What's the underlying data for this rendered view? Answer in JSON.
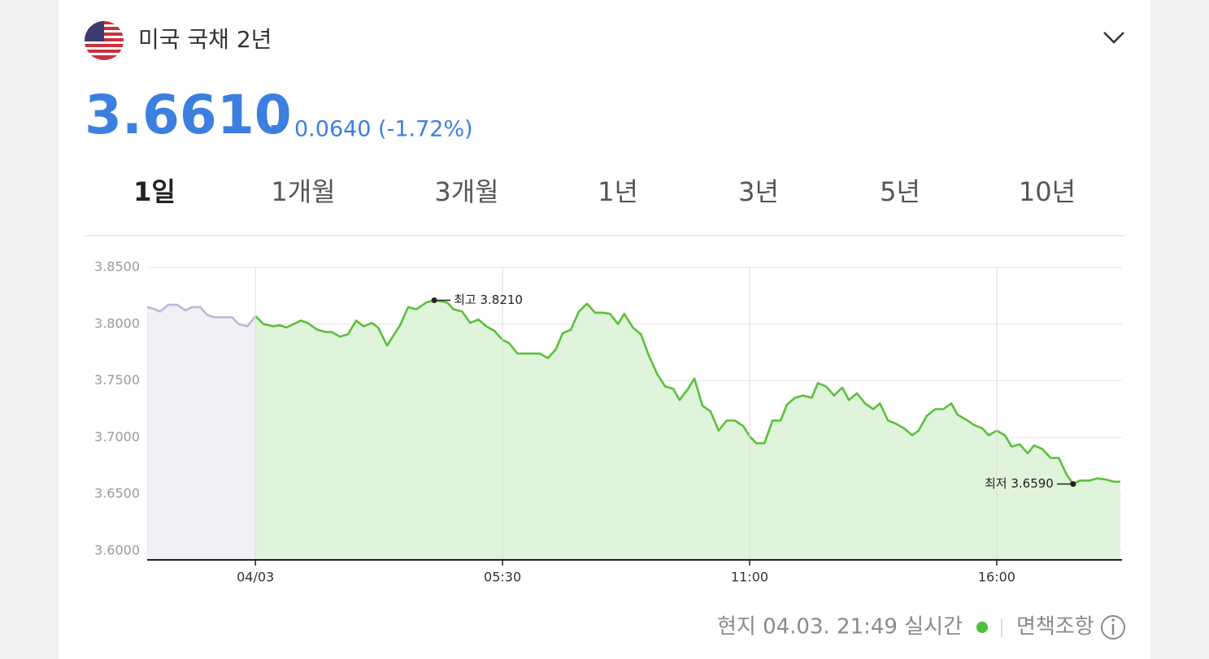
{
  "header": {
    "title": "미국 국채 2년",
    "price": "3.6610",
    "change": "0.0640 (-1.72%)"
  },
  "tabs": [
    "1일",
    "1개월",
    "3개월",
    "1년",
    "3년",
    "5년",
    "10년"
  ],
  "active_tab": 0,
  "chart_data": {
    "type": "area",
    "xlim": [
      -2.41,
      19.27
    ],
    "ylim": [
      3.6,
      3.85
    ],
    "xticks": [
      {
        "value": 0,
        "label": "04/03"
      },
      {
        "value": 5.5,
        "label": "05:30"
      },
      {
        "value": 11,
        "label": "11:00"
      },
      {
        "value": 16.5,
        "label": "16:00"
      }
    ],
    "yticks": [
      {
        "value": 3.6,
        "label": "3.6000"
      },
      {
        "value": 3.65,
        "label": "3.6500"
      },
      {
        "value": 3.7,
        "label": "3.7000"
      },
      {
        "value": 3.75,
        "label": "3.7500"
      },
      {
        "value": 3.8,
        "label": "3.8000"
      },
      {
        "value": 3.85,
        "label": "3.8500"
      }
    ],
    "grid": true,
    "series": [
      {
        "color": "#b7bcd9",
        "fill": "#f0f0f5",
        "x": [
          -2.41,
          -2.23,
          -2.12,
          -1.94,
          -1.74,
          -1.56,
          -1.41,
          -1.23,
          -1.07,
          -0.92,
          -0.52,
          -0.38,
          -0.18,
          0
        ],
        "values": [
          3.815,
          3.813,
          3.811,
          3.817,
          3.817,
          3.812,
          3.815,
          3.815,
          3.808,
          3.806,
          3.806,
          3.8,
          3.798,
          3.807
        ]
      },
      {
        "color": "#5cbf3d",
        "fill": "#dff4da",
        "x": [
          0,
          0.18,
          0.4,
          0.54,
          0.69,
          1.01,
          1.16,
          1.38,
          1.56,
          1.7,
          1.88,
          2.06,
          2.24,
          2.41,
          2.59,
          2.73,
          2.93,
          3.22,
          3.4,
          3.58,
          3.8,
          3.98,
          4.27,
          4.41,
          4.6,
          4.78,
          4.96,
          5.14,
          5.32,
          5.5,
          5.65,
          5.83,
          6.33,
          6.51,
          6.69,
          6.84,
          7.02,
          7.2,
          7.38,
          7.56,
          7.74,
          7.89,
          8.07,
          8.21,
          8.4,
          8.58,
          8.76,
          8.94,
          9.12,
          9.3,
          9.44,
          9.63,
          9.77,
          9.95,
          10.13,
          10.31,
          10.49,
          10.67,
          10.86,
          11,
          11.15,
          11.33,
          11.51,
          11.69,
          11.83,
          12.01,
          12.19,
          12.38,
          12.52,
          12.7,
          12.88,
          13.06,
          13.21,
          13.39,
          13.57,
          13.75,
          13.9,
          14.08,
          14.26,
          14.44,
          14.62,
          14.76,
          14.94,
          15.13,
          15.31,
          15.49,
          15.63,
          15.85,
          15.99,
          16.18,
          16.32,
          16.5,
          16.68,
          16.83,
          17.01,
          17.19,
          17.33,
          17.51,
          17.7,
          17.88,
          18.06,
          18.2,
          18.35,
          18.56,
          18.74,
          18.93,
          19.11,
          19.25
        ],
        "values": [
          3.807,
          3.8,
          3.798,
          3.799,
          3.797,
          3.803,
          3.801,
          3.795,
          3.793,
          3.793,
          3.789,
          3.791,
          3.803,
          3.798,
          3.801,
          3.797,
          3.781,
          3.799,
          3.815,
          3.813,
          3.819,
          3.821,
          3.819,
          3.813,
          3.811,
          3.801,
          3.804,
          3.798,
          3.794,
          3.786,
          3.783,
          3.774,
          3.774,
          3.77,
          3.778,
          3.792,
          3.795,
          3.811,
          3.818,
          3.81,
          3.81,
          3.809,
          3.8,
          3.809,
          3.797,
          3.791,
          3.772,
          3.756,
          3.745,
          3.743,
          3.733,
          3.743,
          3.752,
          3.728,
          3.723,
          3.706,
          3.715,
          3.715,
          3.71,
          3.701,
          3.695,
          3.695,
          3.715,
          3.715,
          3.729,
          3.735,
          3.737,
          3.735,
          3.748,
          3.745,
          3.737,
          3.744,
          3.733,
          3.739,
          3.73,
          3.725,
          3.73,
          3.715,
          3.712,
          3.708,
          3.702,
          3.706,
          3.719,
          3.725,
          3.725,
          3.73,
          3.72,
          3.715,
          3.711,
          3.708,
          3.702,
          3.706,
          3.702,
          3.692,
          3.694,
          3.686,
          3.693,
          3.69,
          3.682,
          3.682,
          3.667,
          3.659,
          3.662,
          3.662,
          3.664,
          3.663,
          3.661,
          3.661
        ]
      }
    ],
    "annotations": [
      {
        "label": "최고 3.8210",
        "x": 3.98,
        "y": 3.821
      },
      {
        "label": "최저 3.6590",
        "x": 18.2,
        "y": 3.659
      }
    ]
  },
  "footer": {
    "timestamp": "현지 04.03. 21:49 실시간",
    "disclaimer": "면책조항"
  }
}
